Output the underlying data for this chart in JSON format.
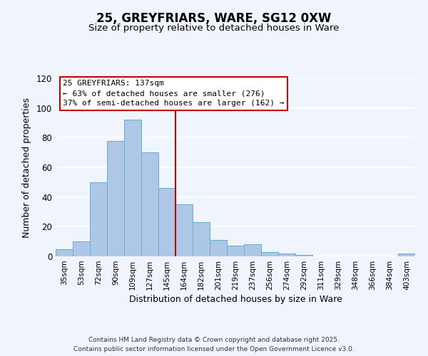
{
  "title": "25, GREYFRIARS, WARE, SG12 0XW",
  "subtitle": "Size of property relative to detached houses in Ware",
  "xlabel": "Distribution of detached houses by size in Ware",
  "ylabel": "Number of detached properties",
  "bar_color": "#adc8e6",
  "bar_edge_color": "#6aaad4",
  "categories": [
    "35sqm",
    "53sqm",
    "72sqm",
    "90sqm",
    "109sqm",
    "127sqm",
    "145sqm",
    "164sqm",
    "182sqm",
    "201sqm",
    "219sqm",
    "237sqm",
    "256sqm",
    "274sqm",
    "292sqm",
    "311sqm",
    "329sqm",
    "348sqm",
    "366sqm",
    "384sqm",
    "403sqm"
  ],
  "values": [
    5,
    10,
    50,
    78,
    92,
    70,
    46,
    35,
    23,
    11,
    7,
    8,
    3,
    2,
    1,
    0,
    0,
    0,
    0,
    0,
    2
  ],
  "vline_x": 6.5,
  "vline_color": "#cc0000",
  "ylim": [
    0,
    120
  ],
  "yticks": [
    0,
    20,
    40,
    60,
    80,
    100,
    120
  ],
  "annotation_title": "25 GREYFRIARS: 137sqm",
  "annotation_line1": "← 63% of detached houses are smaller (276)",
  "annotation_line2": "37% of semi-detached houses are larger (162) →",
  "footer1": "Contains HM Land Registry data © Crown copyright and database right 2025.",
  "footer2": "Contains public sector information licensed under the Open Government Licence v3.0.",
  "background_color": "#f0f4fc",
  "grid_color": "#ffffff",
  "title_fontsize": 12,
  "subtitle_fontsize": 9.5
}
